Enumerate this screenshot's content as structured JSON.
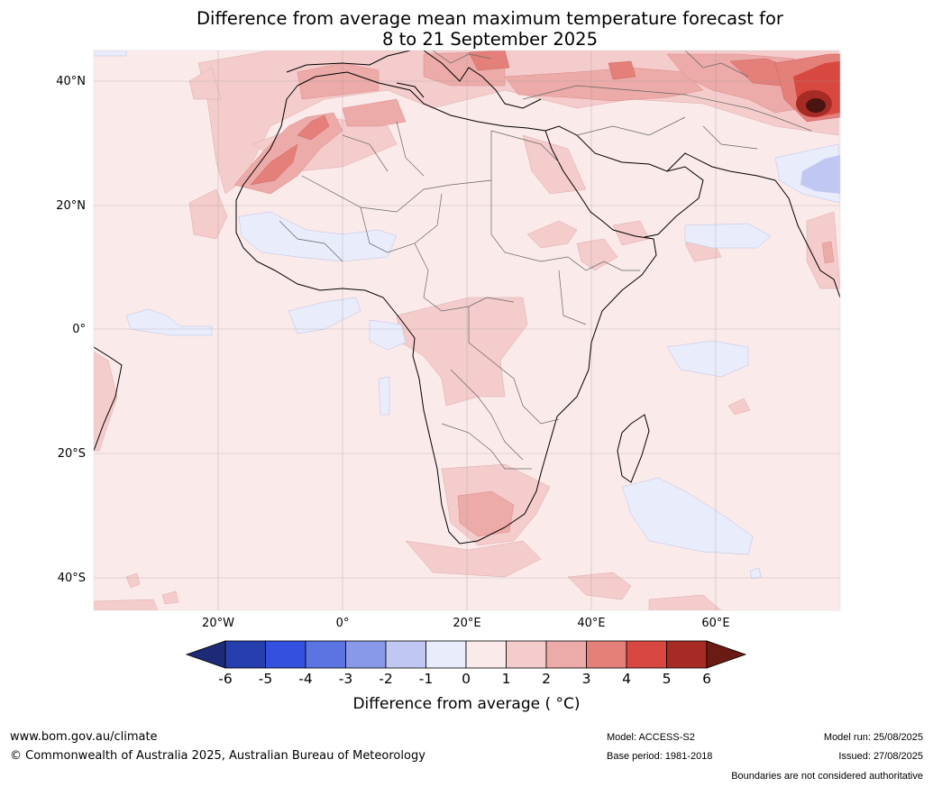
{
  "title": {
    "line1": "Difference from average mean maximum temperature forecast for",
    "line2": "8 to 21 September 2025"
  },
  "map": {
    "region": "Africa",
    "lat_ticks": [
      "40°N",
      "20°N",
      "0°",
      "20°S",
      "40°S"
    ],
    "lon_ticks": [
      "20°W",
      "0°",
      "20°E",
      "40°E",
      "60°E"
    ],
    "gridlines": true
  },
  "colorbar": {
    "ticks": [
      "-6",
      "-5",
      "-4",
      "-3",
      "-2",
      "-1",
      "0",
      "1",
      "2",
      "3",
      "4",
      "5",
      "6"
    ],
    "colors": [
      "#1c2a78",
      "#263eae",
      "#3450de",
      "#5b74e2",
      "#8899ea",
      "#c0c7f2",
      "#e9ecfb",
      "#fbeaea",
      "#f5cccc",
      "#ecaaa8",
      "#e57f7a",
      "#d84840",
      "#a82a24",
      "#6b1a14"
    ],
    "label": "Difference from average (°C)",
    "label_display": "Difference from average ( °C)"
  },
  "footer": {
    "website": "www.bom.gov.au/climate",
    "copyright": "© Commonwealth of Australia 2025, Australian Bureau of Meteorology",
    "model": "Model: ACCESS-S2",
    "base_period": "Base period: 1981-2018",
    "model_run": "Model run: 25/08/2025",
    "issued": "Issued: 27/08/2025",
    "disclaimer": "Boundaries are not considered authoritative"
  }
}
